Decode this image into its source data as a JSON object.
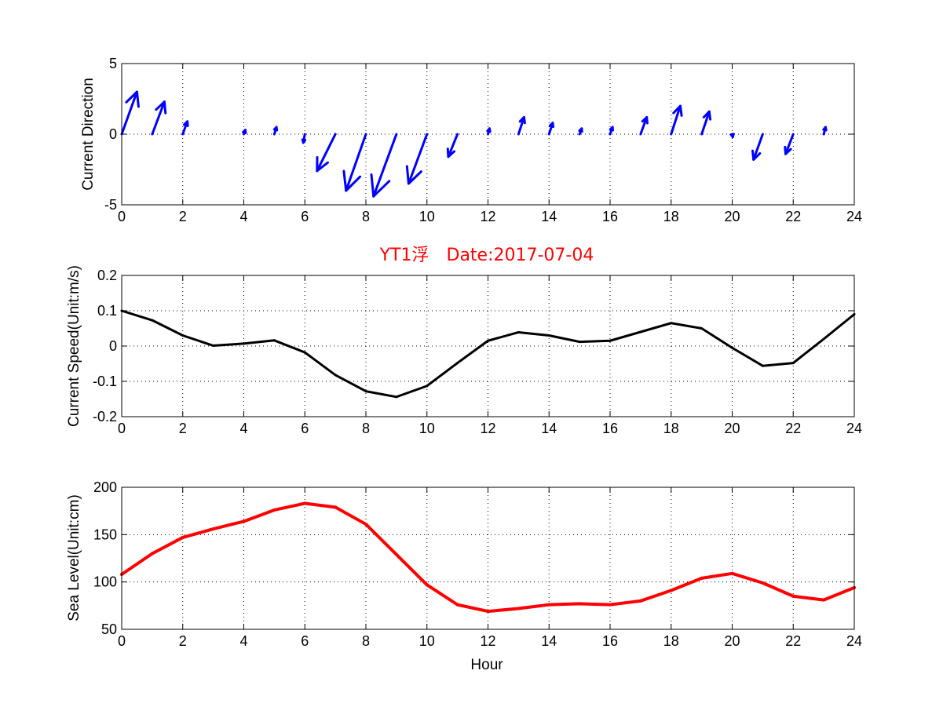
{
  "colors": {
    "arrow": "#0000ff",
    "speed_line": "#000000",
    "sea_line": "#ff0000",
    "title": "#ff0000"
  },
  "chart_data": [
    {
      "type": "quiver",
      "ylabel": "Current Direction",
      "xlabel": "",
      "xlim": [
        0,
        24
      ],
      "ylim": [
        -5,
        5
      ],
      "xticks": [
        "0",
        "2",
        "4",
        "6",
        "8",
        "10",
        "12",
        "14",
        "16",
        "18",
        "20",
        "22",
        "24"
      ],
      "yticks": [
        "-5",
        "0",
        "5"
      ],
      "grid": true,
      "vectors": [
        {
          "x": 0,
          "u": 0.5,
          "v": 3.0
        },
        {
          "x": 1,
          "u": 0.4,
          "v": 2.3
        },
        {
          "x": 2,
          "u": 0.15,
          "v": 0.9
        },
        {
          "x": 4,
          "u": 0.05,
          "v": 0.3
        },
        {
          "x": 5,
          "u": 0.07,
          "v": 0.5
        },
        {
          "x": 6,
          "u": -0.05,
          "v": -0.6
        },
        {
          "x": 7,
          "u": -0.6,
          "v": -2.6
        },
        {
          "x": 8,
          "u": -0.65,
          "v": -4.0
        },
        {
          "x": 9,
          "u": -0.75,
          "v": -4.4
        },
        {
          "x": 10,
          "u": -0.6,
          "v": -3.5
        },
        {
          "x": 11,
          "u": -0.3,
          "v": -1.6
        },
        {
          "x": 12,
          "u": 0.05,
          "v": 0.4
        },
        {
          "x": 13,
          "u": 0.18,
          "v": 1.2
        },
        {
          "x": 14,
          "u": 0.12,
          "v": 0.8
        },
        {
          "x": 15,
          "u": 0.07,
          "v": 0.4
        },
        {
          "x": 16,
          "u": 0.08,
          "v": 0.5
        },
        {
          "x": 17,
          "u": 0.2,
          "v": 1.2
        },
        {
          "x": 18,
          "u": 0.3,
          "v": 2.0
        },
        {
          "x": 19,
          "u": 0.25,
          "v": 1.6
        },
        {
          "x": 20,
          "u": 0.02,
          "v": -0.2
        },
        {
          "x": 21,
          "u": -0.3,
          "v": -1.8
        },
        {
          "x": 22,
          "u": -0.25,
          "v": -1.4
        },
        {
          "x": 23,
          "u": 0.06,
          "v": 0.5
        }
      ]
    },
    {
      "type": "line",
      "title": "YT1浮　Date:2017-07-04",
      "ylabel": "Current Speed(Unit:m/s)",
      "xlabel": "",
      "xlim": [
        0,
        24
      ],
      "ylim": [
        -0.2,
        0.2
      ],
      "xticks": [
        "0",
        "2",
        "4",
        "6",
        "8",
        "10",
        "12",
        "14",
        "16",
        "18",
        "20",
        "22",
        "24"
      ],
      "yticks": [
        "-0.2",
        "-0.1",
        "0",
        "0.1",
        "0.2"
      ],
      "grid": true,
      "x": [
        0,
        1,
        2,
        3,
        4,
        5,
        6,
        7,
        8,
        9,
        10,
        11,
        12,
        13,
        14,
        15,
        16,
        17,
        18,
        19,
        20,
        21,
        22,
        23,
        24
      ],
      "values": [
        0.1,
        0.073,
        0.03,
        0.001,
        0.007,
        0.016,
        -0.018,
        -0.082,
        -0.128,
        -0.144,
        -0.113,
        -0.048,
        0.015,
        0.039,
        0.03,
        0.012,
        0.015,
        0.04,
        0.065,
        0.05,
        -0.005,
        -0.056,
        -0.048,
        0.02,
        0.09
      ]
    },
    {
      "type": "line",
      "ylabel": "Sea Level(Unit:cm)",
      "xlabel": "Hour",
      "xlim": [
        0,
        24
      ],
      "ylim": [
        50,
        200
      ],
      "xticks": [
        "0",
        "2",
        "4",
        "6",
        "8",
        "10",
        "12",
        "14",
        "16",
        "18",
        "20",
        "22",
        "24"
      ],
      "yticks": [
        "50",
        "100",
        "150",
        "200"
      ],
      "grid": true,
      "x": [
        0,
        1,
        2,
        3,
        4,
        5,
        6,
        7,
        8,
        9,
        10,
        11,
        12,
        13,
        14,
        15,
        16,
        17,
        18,
        19,
        20,
        21,
        22,
        23,
        24
      ],
      "values": [
        108,
        130,
        147,
        156,
        164,
        176,
        183,
        179,
        161,
        129,
        97,
        76,
        69,
        72,
        76,
        77,
        76,
        80,
        91,
        104,
        109,
        99,
        85,
        81,
        94
      ]
    }
  ]
}
